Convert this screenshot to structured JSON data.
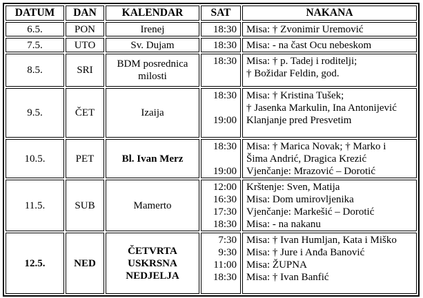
{
  "table": {
    "headers": [
      "DATUM",
      "DAN",
      "KALENDAR",
      "SAT",
      "NAKANA"
    ],
    "rows": [
      {
        "datum": "6.5.",
        "dan": "PON",
        "kalendar": [
          "Irenej"
        ],
        "sat": [
          "18:30"
        ],
        "nakana": [
          "Misa: † Zvonimir Uremović"
        ],
        "bold_cells": []
      },
      {
        "datum": "7.5.",
        "dan": "UTO",
        "kalendar": [
          "Sv. Dujam"
        ],
        "sat": [
          "18:30"
        ],
        "nakana": [
          "Misa: - na čast Ocu nebeskom"
        ],
        "bold_cells": []
      },
      {
        "datum": "8.5.",
        "dan": "SRI",
        "kalendar": [
          "BDM posrednica",
          "milosti"
        ],
        "sat": [
          "18:30"
        ],
        "nakana": [
          "Misa: † p. Tadej i roditelji;",
          "† Božidar Feldin, god."
        ],
        "bold_cells": []
      },
      {
        "datum": "9.5.",
        "dan": "ČET",
        "kalendar": [
          "Izaija"
        ],
        "sat": [
          "18:30",
          "",
          "19:00"
        ],
        "nakana": [
          "Misa: † Kristina Tušek;",
          "† Jasenka Markulin, Ina Antonijević",
          "Klanjanje pred Presvetim"
        ],
        "bold_cells": []
      },
      {
        "datum": "10.5.",
        "dan": "PET",
        "kalendar": [
          "Bl. Ivan Merz"
        ],
        "sat": [
          "18:30",
          "",
          "19:00"
        ],
        "nakana": [
          "Misa: † Marica Novak; † Marko i",
          "Šima Andrić, Dragica Krezić",
          "Vjenčanje: Mrazović – Dorotić"
        ],
        "bold_cells": [
          "kalendar"
        ]
      },
      {
        "datum": "11.5.",
        "dan": "SUB",
        "kalendar": [
          "Mamerto"
        ],
        "sat": [
          "12:00",
          "16:30",
          "17:30",
          "18:30"
        ],
        "nakana": [
          "Krštenje: Sven, Matija",
          "Misa: Dom umirovljenika",
          "Vjenčanje: Markešić – Dorotić",
          "Misa: - na nakanu"
        ],
        "bold_cells": []
      },
      {
        "datum": "12.5.",
        "dan": "NED",
        "kalendar": [
          "ČETVRTA",
          "USKRSNA",
          "NEDJELJA"
        ],
        "sat": [
          "7:30",
          "9:30",
          "11:00",
          "18:30"
        ],
        "nakana": [
          "Misa: † Ivan Humljan, Kata i Miško",
          "Misa: † Jure i Anđa Banović",
          "Misa: ŽUPNA",
          "Misa: † Ivan Banfić"
        ],
        "bold_cells": [
          "datum",
          "dan",
          "kalendar"
        ]
      }
    ]
  }
}
